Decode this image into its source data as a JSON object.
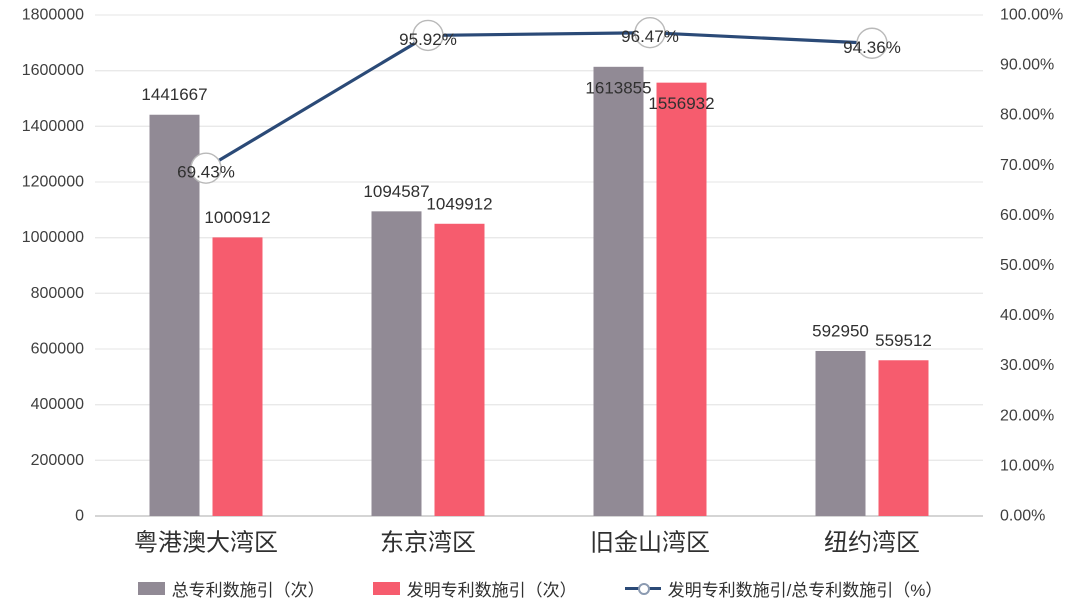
{
  "colors": {
    "bar_total": "#918a95",
    "bar_invention": "#f65c6e",
    "line_ratio": "#2b4a77",
    "marker_fill": "#ffffff",
    "marker_stroke": "#b9b9b9",
    "grid": "#e9e9e9",
    "axis_line": "#d5d5d5",
    "text": "#3f3f3f",
    "background": "#ffffff"
  },
  "chart_data": {
    "type": "combo bar+line",
    "categories": [
      "粤港澳大湾区",
      "东京湾区",
      "旧金山湾区",
      "纽约湾区"
    ],
    "series": [
      {
        "name": "总专利数施引（次）",
        "type": "bar",
        "color_key": "bar_total",
        "values": [
          1441667,
          1094587,
          1613855,
          592950
        ],
        "labels": [
          "1441667",
          "1094587",
          "1613855",
          "592950"
        ]
      },
      {
        "name": "发明专利数施引（次）",
        "type": "bar",
        "color_key": "bar_invention",
        "values": [
          1000912,
          1049912,
          1556932,
          559512
        ],
        "labels": [
          "1000912",
          "1049912",
          "1556932",
          "559512"
        ]
      },
      {
        "name": "发明专利数施引/总专利数施引（%）",
        "type": "line",
        "color_key": "line_ratio",
        "values": [
          69.43,
          95.92,
          96.47,
          94.36
        ],
        "labels": [
          "69.43%",
          "95.92%",
          "96.47%",
          "94.36%"
        ]
      }
    ],
    "left_axis": {
      "min": 0,
      "max": 1800000,
      "step": 200000,
      "ticks": [
        "1800000",
        "1600000",
        "1400000",
        "1200000",
        "1000000",
        "800000",
        "600000",
        "400000",
        "200000",
        "0"
      ]
    },
    "right_axis": {
      "min": 0,
      "max": 100,
      "step": 10,
      "ticks": [
        "100.00%",
        "90.00%",
        "80.00%",
        "70.00%",
        "60.00%",
        "50.00%",
        "40.00%",
        "30.00%",
        "20.00%",
        "10.00%",
        "0.00%"
      ]
    },
    "grid": true,
    "legend_position": "bottom"
  }
}
